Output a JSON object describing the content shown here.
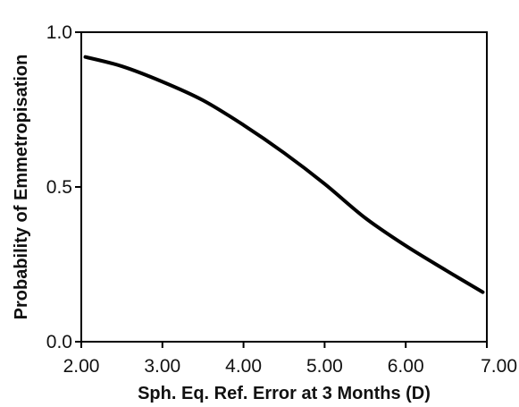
{
  "chart_data": {
    "type": "line",
    "title": "",
    "xlabel": "Sph. Eq. Ref. Error at 3 Months (D)",
    "ylabel": "Probability of Emmetropisation",
    "xlim": [
      2.0,
      7.0
    ],
    "ylim": [
      0.0,
      1.0
    ],
    "x_ticks": [
      2.0,
      3.0,
      4.0,
      5.0,
      6.0,
      7.0
    ],
    "x_tick_labels": [
      "2.00",
      "3.00",
      "4.00",
      "5.00",
      "6.00",
      "7.00"
    ],
    "y_ticks": [
      0.0,
      0.5,
      1.0
    ],
    "y_tick_labels": [
      "0.0",
      "0.5",
      "1.0"
    ],
    "grid": false,
    "series": [
      {
        "color": "#000000",
        "x": [
          2.05,
          2.5,
          3.0,
          3.5,
          4.0,
          4.5,
          5.0,
          5.5,
          6.0,
          6.5,
          6.95
        ],
        "y": [
          0.92,
          0.89,
          0.84,
          0.78,
          0.7,
          0.61,
          0.51,
          0.4,
          0.31,
          0.23,
          0.16
        ]
      }
    ]
  }
}
